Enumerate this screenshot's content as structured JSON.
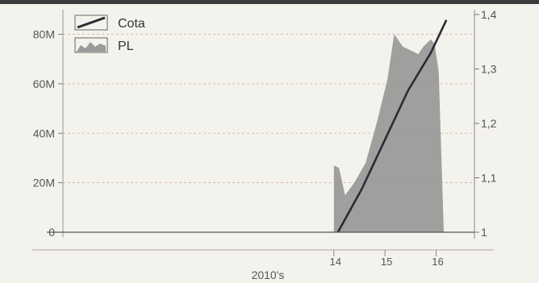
{
  "chart_data": {
    "type": "line",
    "x": [
      "14",
      "15",
      "16"
    ],
    "x_group_label": "2010's",
    "series": [
      {
        "name": "PL",
        "kind": "area",
        "axis": "left",
        "color": "#9a9a9a",
        "points": [
          [
            14.0,
            27
          ],
          [
            14.1,
            26
          ],
          [
            14.22,
            15
          ],
          [
            14.4,
            20
          ],
          [
            14.62,
            28
          ],
          [
            14.85,
            45
          ],
          [
            15.05,
            62
          ],
          [
            15.18,
            80
          ],
          [
            15.35,
            75
          ],
          [
            15.55,
            73
          ],
          [
            15.65,
            72
          ],
          [
            15.75,
            75
          ],
          [
            15.9,
            78
          ],
          [
            15.97,
            76
          ],
          [
            16.05,
            65
          ],
          [
            16.15,
            0
          ],
          [
            14.0,
            0
          ]
        ]
      },
      {
        "name": "Cota",
        "kind": "line",
        "axis": "right",
        "color": "#2b2b35",
        "points": [
          [
            14.08,
            1.0
          ],
          [
            14.55,
            1.08
          ],
          [
            15.0,
            1.17
          ],
          [
            15.45,
            1.26
          ],
          [
            15.9,
            1.33
          ],
          [
            16.2,
            1.39
          ]
        ]
      }
    ],
    "y_left": {
      "ticks": [
        0,
        20,
        40,
        60,
        80
      ],
      "tick_labels": [
        "0",
        "20M",
        "40M",
        "60M",
        "80M"
      ],
      "range": [
        0,
        88
      ]
    },
    "y_right": {
      "ticks": [
        1.0,
        1.1,
        1.2,
        1.3,
        1.4
      ],
      "tick_labels": [
        "1",
        "1,1",
        "1,2",
        "1,3",
        "1,4"
      ],
      "range": [
        1.0,
        1.4
      ]
    },
    "x_range": [
      8.7,
      16.75
    ],
    "grid": true,
    "legend_position": "top-left"
  }
}
